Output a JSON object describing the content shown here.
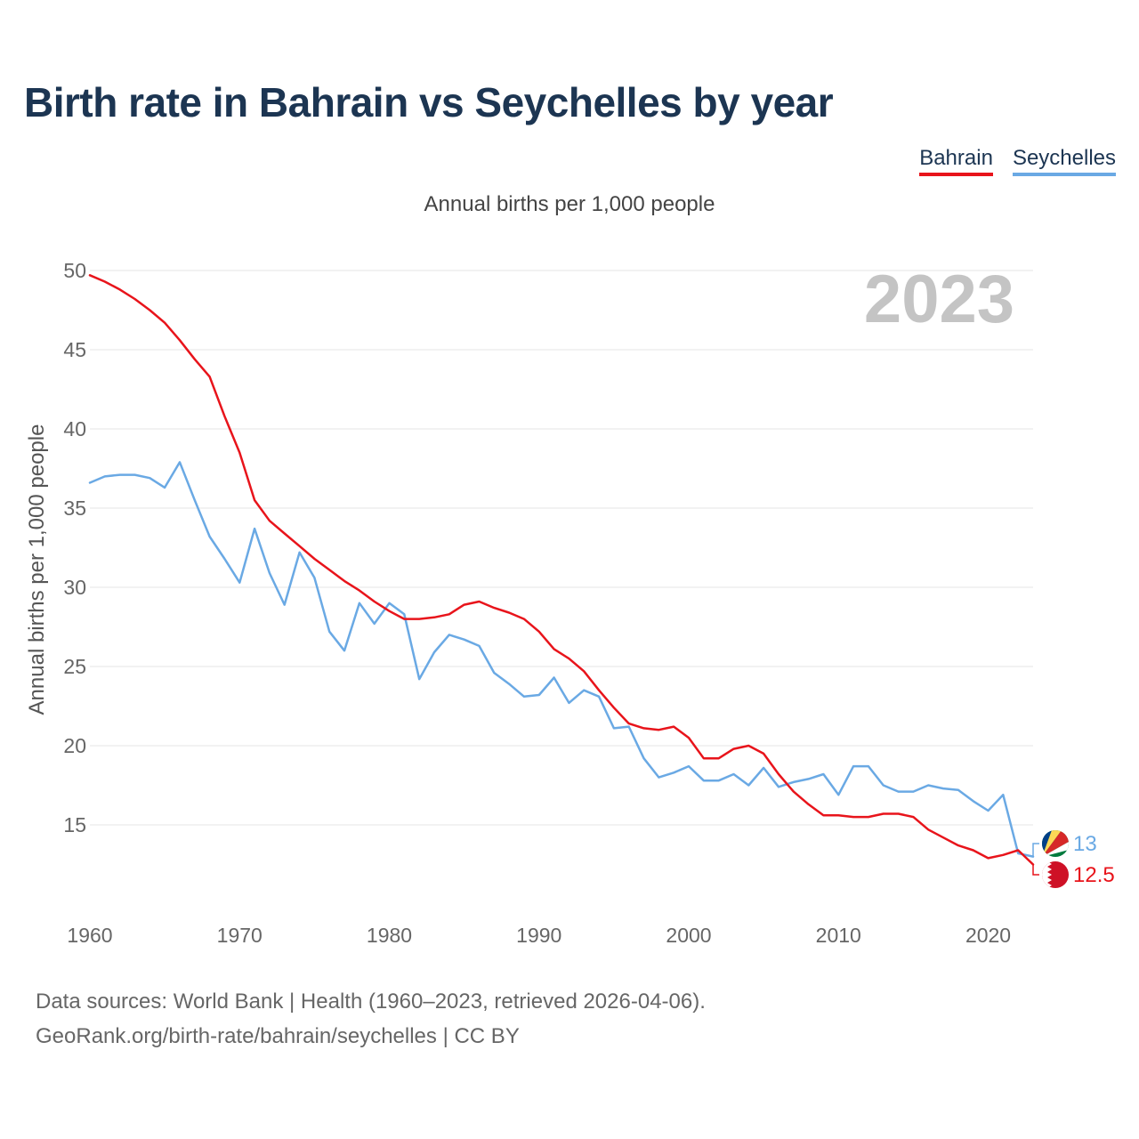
{
  "chart_data": {
    "type": "line",
    "title": "Birth rate in Bahrain vs Seychelles by year",
    "subtitle": "Annual births per 1,000 people",
    "ylabel": "Annual births per 1,000 people",
    "xlabel": "",
    "year_display": "2023",
    "xlim": [
      1960,
      2023
    ],
    "ylim": [
      10.5,
      50.5
    ],
    "x_ticks": [
      1960,
      1970,
      1980,
      1990,
      2000,
      2010,
      2020
    ],
    "y_ticks": [
      15,
      20,
      25,
      30,
      35,
      40,
      45,
      50
    ],
    "legend_position": "top-right",
    "x": [
      1960,
      1961,
      1962,
      1963,
      1964,
      1965,
      1966,
      1967,
      1968,
      1969,
      1970,
      1971,
      1972,
      1973,
      1974,
      1975,
      1976,
      1977,
      1978,
      1979,
      1980,
      1981,
      1982,
      1983,
      1984,
      1985,
      1986,
      1987,
      1988,
      1989,
      1990,
      1991,
      1992,
      1993,
      1994,
      1995,
      1996,
      1997,
      1998,
      1999,
      2000,
      2001,
      2002,
      2003,
      2004,
      2005,
      2006,
      2007,
      2008,
      2009,
      2010,
      2011,
      2012,
      2013,
      2014,
      2015,
      2016,
      2017,
      2018,
      2019,
      2020,
      2021,
      2022,
      2023
    ],
    "series": [
      {
        "name": "Bahrain",
        "color": "#e8141b",
        "end_label": "12.5",
        "values": [
          49.7,
          49.3,
          48.8,
          48.2,
          47.5,
          46.7,
          45.6,
          44.4,
          43.3,
          40.8,
          38.5,
          35.5,
          34.2,
          33.4,
          32.6,
          31.8,
          31.1,
          30.4,
          29.8,
          29.1,
          28.5,
          28.0,
          28.0,
          28.1,
          28.3,
          28.9,
          29.1,
          28.7,
          28.4,
          28.0,
          27.2,
          26.1,
          25.5,
          24.7,
          23.5,
          22.4,
          21.4,
          21.1,
          21.0,
          21.2,
          20.5,
          19.2,
          19.2,
          19.8,
          20.0,
          19.5,
          18.2,
          17.1,
          16.3,
          15.6,
          15.6,
          15.5,
          15.5,
          15.7,
          15.7,
          15.5,
          14.7,
          14.2,
          13.7,
          13.4,
          12.9,
          13.1,
          13.4,
          12.5
        ]
      },
      {
        "name": "Seychelles",
        "color": "#6aa9e4",
        "end_label": "13",
        "values": [
          36.6,
          37.0,
          37.1,
          37.1,
          36.9,
          36.3,
          37.9,
          35.5,
          33.2,
          31.8,
          30.3,
          33.7,
          30.9,
          28.9,
          32.2,
          30.6,
          27.2,
          26.0,
          29.0,
          27.7,
          29.0,
          28.3,
          24.2,
          25.9,
          27.0,
          26.7,
          26.3,
          24.6,
          23.9,
          23.1,
          23.2,
          24.3,
          22.7,
          23.5,
          23.1,
          21.1,
          21.2,
          19.2,
          18.0,
          18.3,
          18.7,
          17.8,
          17.8,
          18.2,
          17.5,
          18.6,
          17.4,
          17.7,
          17.9,
          18.2,
          16.9,
          18.7,
          18.7,
          17.5,
          17.1,
          17.1,
          17.5,
          17.3,
          17.2,
          16.5,
          15.9,
          16.9,
          13.2,
          13.0
        ]
      }
    ]
  },
  "legend": {
    "bahrain": "Bahrain",
    "seychelles": "Seychelles"
  },
  "footer": {
    "line1": "Data sources: World Bank | Health (1960–2023, retrieved 2026-04-06).",
    "line2": "GeoRank.org/birth-rate/bahrain/seychelles | CC BY"
  }
}
